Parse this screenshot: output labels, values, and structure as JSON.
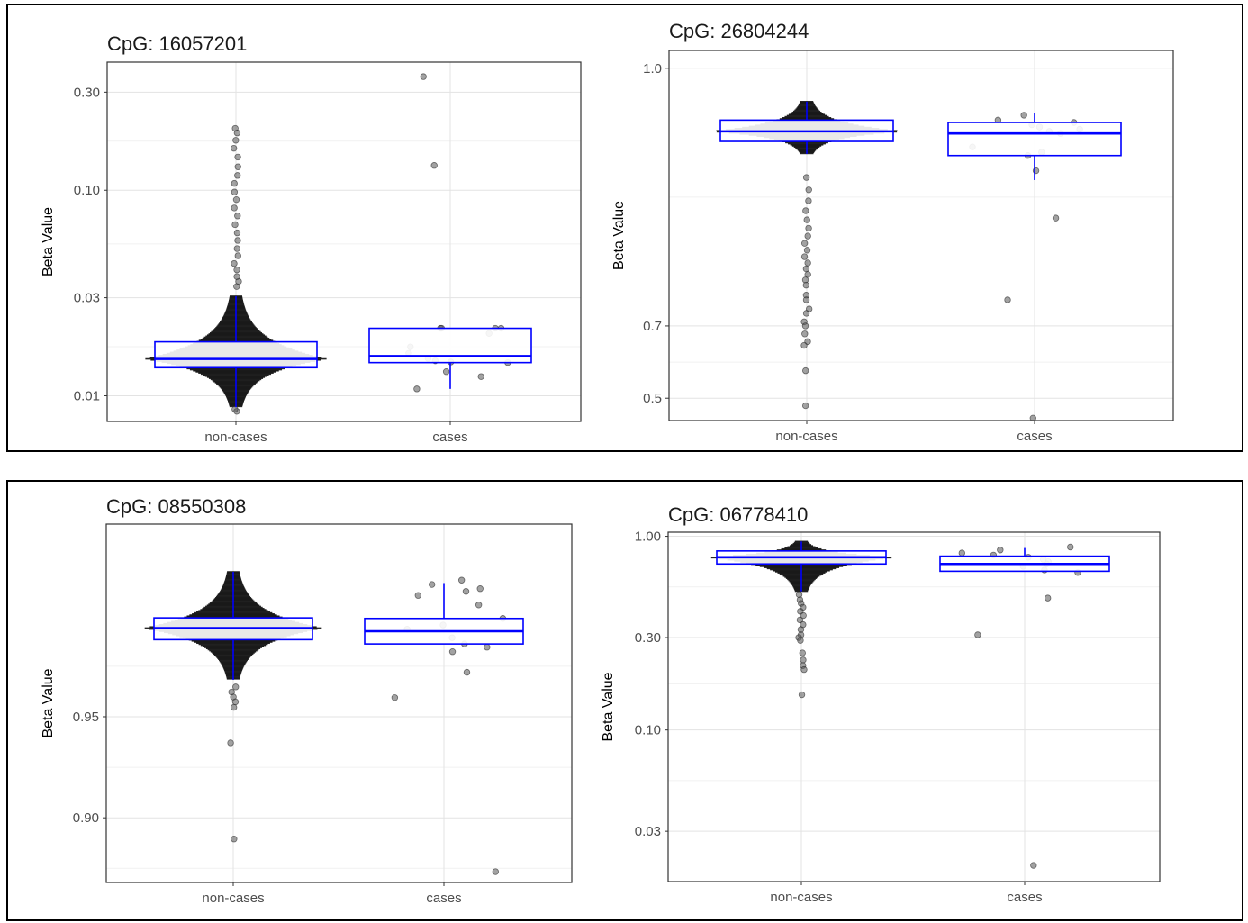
{
  "colors": {
    "box": "#0000ff",
    "points": "#000000",
    "grid_major": "#e3e3e3",
    "grid_minor": "#f1f1f1",
    "panel_border": "#333333"
  },
  "chart_data": [
    {
      "type": "box",
      "title": "CpG: 16057201",
      "xlabel": "",
      "ylabel": "Beta Value",
      "yscale": "log10",
      "ylim": [
        0.0075,
        0.42
      ],
      "ytick_values": [
        0.01,
        0.03,
        0.1,
        0.3
      ],
      "ytick_labels": [
        "0.01",
        "0.03",
        "0.10",
        "0.30"
      ],
      "categories": [
        "non-cases",
        "cases"
      ],
      "boxes": [
        {
          "category": "non-cases",
          "q1": 0.0137,
          "median": 0.0151,
          "q3": 0.0183,
          "whisker_low": 0.0088,
          "whisker_high": 0.0305
        },
        {
          "category": "cases",
          "q1": 0.0145,
          "median": 0.0156,
          "q3": 0.0213,
          "whisker_low": 0.0108,
          "whisker_high": 0.0213
        }
      ],
      "points": [
        {
          "category": "non-cases",
          "values": [
            0.0084,
            0.0086,
            0.034,
            0.036,
            0.038,
            0.041,
            0.044,
            0.048,
            0.052,
            0.057,
            0.062,
            0.068,
            0.075,
            0.082,
            0.09,
            0.098,
            0.108,
            0.118,
            0.13,
            0.145,
            0.16,
            0.175,
            0.19,
            0.2
          ]
        },
        {
          "category": "cases",
          "values": [
            0.357,
            0.132,
            0.0213,
            0.0213,
            0.0213,
            0.0213,
            0.0201,
            0.0173,
            0.0161,
            0.0152,
            0.0148,
            0.0146,
            0.0145,
            0.0131,
            0.0124,
            0.0108
          ]
        }
      ]
    },
    {
      "type": "box",
      "title": "CpG: 26804244",
      "xlabel": "",
      "ylabel": "Beta Value",
      "yscale": "logit",
      "ylim": [
        0.435,
        0.9833
      ],
      "ytick_values": [
        0.5,
        0.7,
        0.9795
      ],
      "ytick_labels": [
        "0.5",
        "0.7",
        "1.0"
      ],
      "categories": [
        "non-cases",
        "cases"
      ],
      "boxes": [
        {
          "category": "non-cases",
          "q1": 0.953,
          "median": 0.958,
          "q3": 0.963,
          "whisker_low": 0.946,
          "whisker_high": 0.97
        },
        {
          "category": "cases",
          "q1": 0.945,
          "median": 0.957,
          "q3": 0.962,
          "whisker_low": 0.928,
          "whisker_high": 0.966
        }
      ],
      "points": [
        {
          "category": "non-cases",
          "values": [
            0.93,
            0.92,
            0.91,
            0.9,
            0.89,
            0.88,
            0.87,
            0.86,
            0.85,
            0.84,
            0.83,
            0.82,
            0.81,
            0.8,
            0.79,
            0.77,
            0.76,
            0.74,
            0.73,
            0.71,
            0.7,
            0.68,
            0.66,
            0.65,
            0.58,
            0.478
          ]
        },
        {
          "category": "cases",
          "values": [
            0.965,
            0.963,
            0.962,
            0.961,
            0.96,
            0.959,
            0.958,
            0.957,
            0.95,
            0.947,
            0.945,
            0.935,
            0.892,
            0.76,
            0.442
          ]
        }
      ]
    },
    {
      "type": "box",
      "title": "CpG: 08550308",
      "xlabel": "",
      "ylabel": "Beta Value",
      "yscale": "logit",
      "ylim": [
        0.848,
        0.9875
      ],
      "ytick_values": [
        0.9,
        0.95
      ],
      "ytick_labels": [
        "0.90",
        "0.95"
      ],
      "categories": [
        "non-cases",
        "cases"
      ],
      "boxes": [
        {
          "category": "non-cases",
          "q1": 0.9711,
          "median": 0.9734,
          "q3": 0.9753,
          "whisker_low": 0.9615,
          "whisker_high": 0.9823
        },
        {
          "category": "cases",
          "q1": 0.9702,
          "median": 0.9728,
          "q3": 0.9752,
          "whisker_low": 0.9702,
          "whisker_high": 0.9808
        }
      ],
      "points": [
        {
          "category": "non-cases",
          "values": [
            0.9595,
            0.958,
            0.9565,
            0.955,
            0.9532,
            0.94,
            0.885
          ]
        },
        {
          "category": "cases",
          "values": [
            0.9812,
            0.9806,
            0.98,
            0.9796,
            0.979,
            0.9775,
            0.9752,
            0.974,
            0.9732,
            0.9715,
            0.9702,
            0.9695,
            0.9685,
            0.9635,
            0.9563,
            0.858
          ]
        }
      ]
    },
    {
      "type": "box",
      "title": "CpG: 06778410",
      "xlabel": "",
      "ylabel": "Beta Value",
      "yscale": "log10",
      "ylim": [
        0.0165,
        1.05
      ],
      "ytick_values": [
        0.03,
        0.1,
        0.3,
        1.0
      ],
      "ytick_labels": [
        "0.03",
        "0.10",
        "0.30",
        "1.00"
      ],
      "categories": [
        "non-cases",
        "cases"
      ],
      "boxes": [
        {
          "category": "non-cases",
          "q1": 0.72,
          "median": 0.78,
          "q3": 0.84,
          "whisker_low": 0.52,
          "whisker_high": 0.94
        },
        {
          "category": "cases",
          "q1": 0.66,
          "median": 0.72,
          "q3": 0.79,
          "whisker_low": 0.66,
          "whisker_high": 0.87
        }
      ],
      "points": [
        {
          "category": "non-cases",
          "values": [
            0.5,
            0.47,
            0.45,
            0.43,
            0.41,
            0.39,
            0.37,
            0.35,
            0.33,
            0.31,
            0.3,
            0.29,
            0.25,
            0.23,
            0.215,
            0.205,
            0.152
          ]
        },
        {
          "category": "cases",
          "values": [
            0.88,
            0.85,
            0.82,
            0.8,
            0.78,
            0.76,
            0.74,
            0.72,
            0.7,
            0.67,
            0.65,
            0.48,
            0.31,
            0.02
          ]
        }
      ]
    }
  ]
}
